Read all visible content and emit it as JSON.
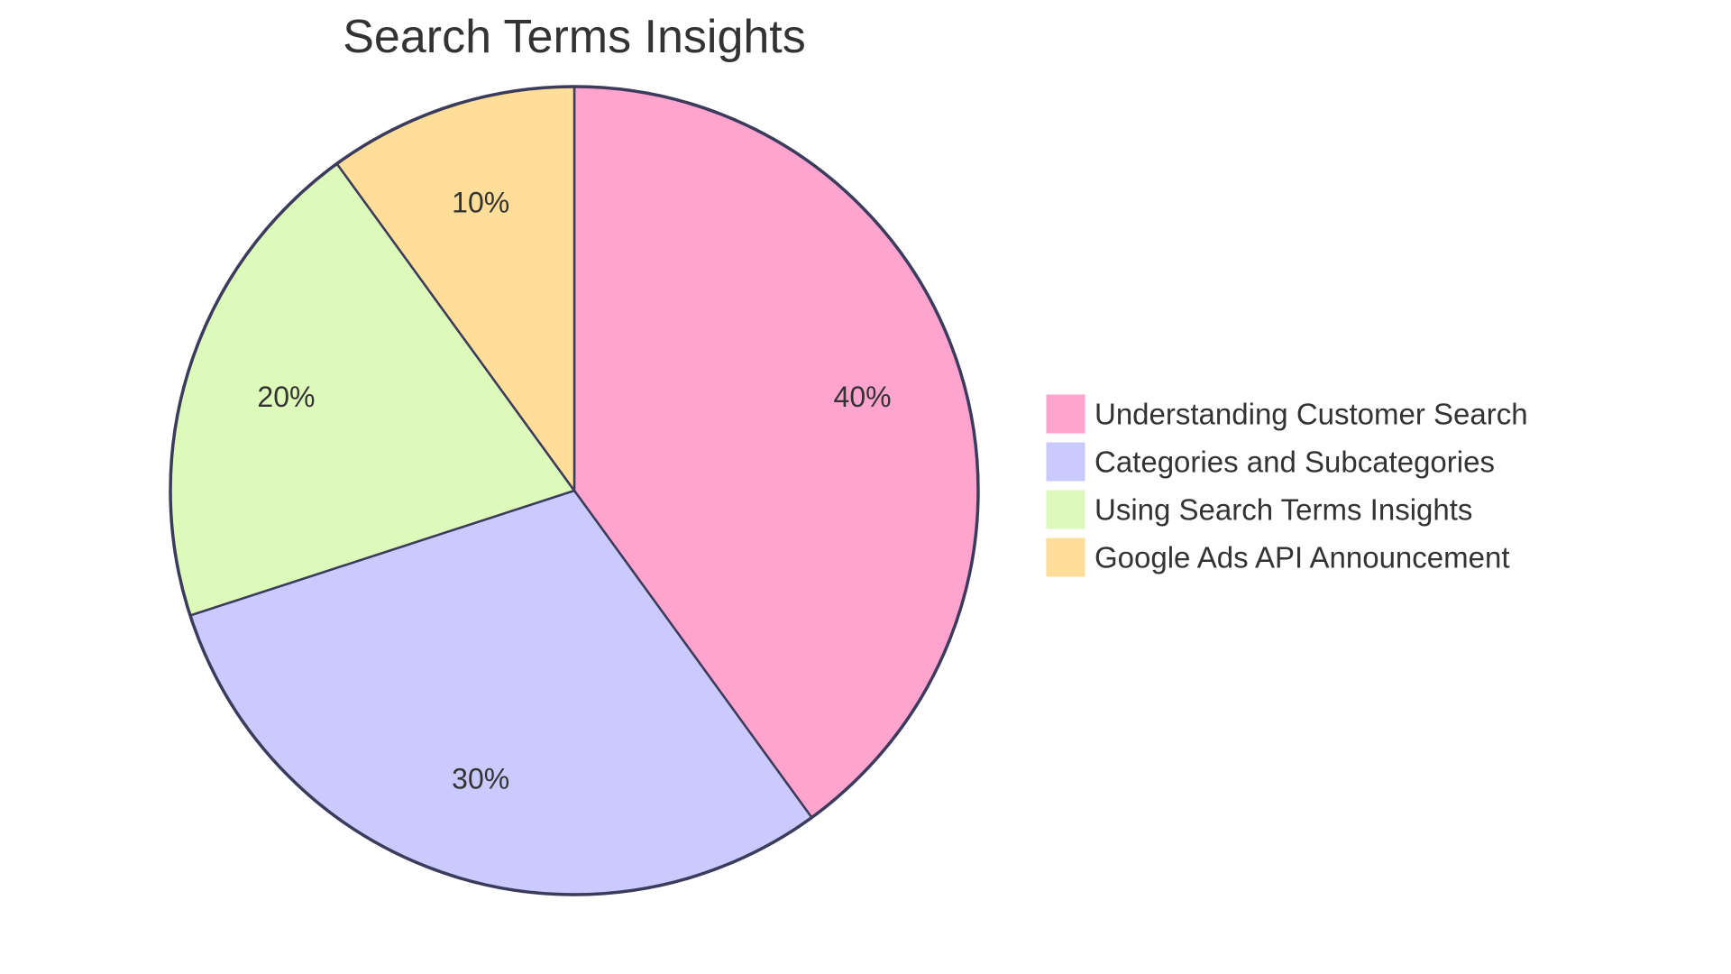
{
  "chart_data": {
    "type": "pie",
    "title": "Search Terms Insights",
    "slices": [
      {
        "label": "Understanding Customer Search",
        "value": 40,
        "display": "40%",
        "color": "#FFA3CF"
      },
      {
        "label": "Categories and Subcategories",
        "value": 30,
        "display": "30%",
        "color": "#CACAFF"
      },
      {
        "label": "Using Search Terms Insights",
        "value": 20,
        "display": "20%",
        "color": "#DDFABB"
      },
      {
        "label": "Google Ads API Announcement",
        "value": 10,
        "display": "10%",
        "color": "#FFDE99"
      }
    ],
    "legend_position": "right"
  }
}
